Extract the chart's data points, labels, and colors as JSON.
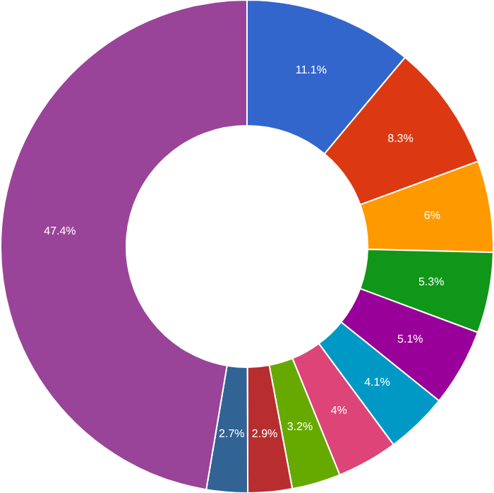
{
  "chart_data": {
    "type": "donut",
    "categories": [
      null,
      null,
      null,
      null,
      null,
      null,
      null,
      null,
      null,
      null,
      null
    ],
    "values": [
      11.1,
      8.3,
      6,
      5.3,
      5.1,
      4.1,
      4,
      3.2,
      2.9,
      2.7,
      47.4
    ],
    "value_labels": [
      "11.1%",
      "8.3%",
      "6%",
      "5.3%",
      "5.1%",
      "4.1%",
      "4%",
      "3.2%",
      "2.9%",
      "2.7%",
      "47.4%"
    ],
    "colors": [
      "#3366cc",
      "#dc3912",
      "#ff9900",
      "#109618",
      "#990099",
      "#0099c6",
      "#dd4477",
      "#66aa00",
      "#b82e2e",
      "#316395",
      "#994499"
    ]
  }
}
